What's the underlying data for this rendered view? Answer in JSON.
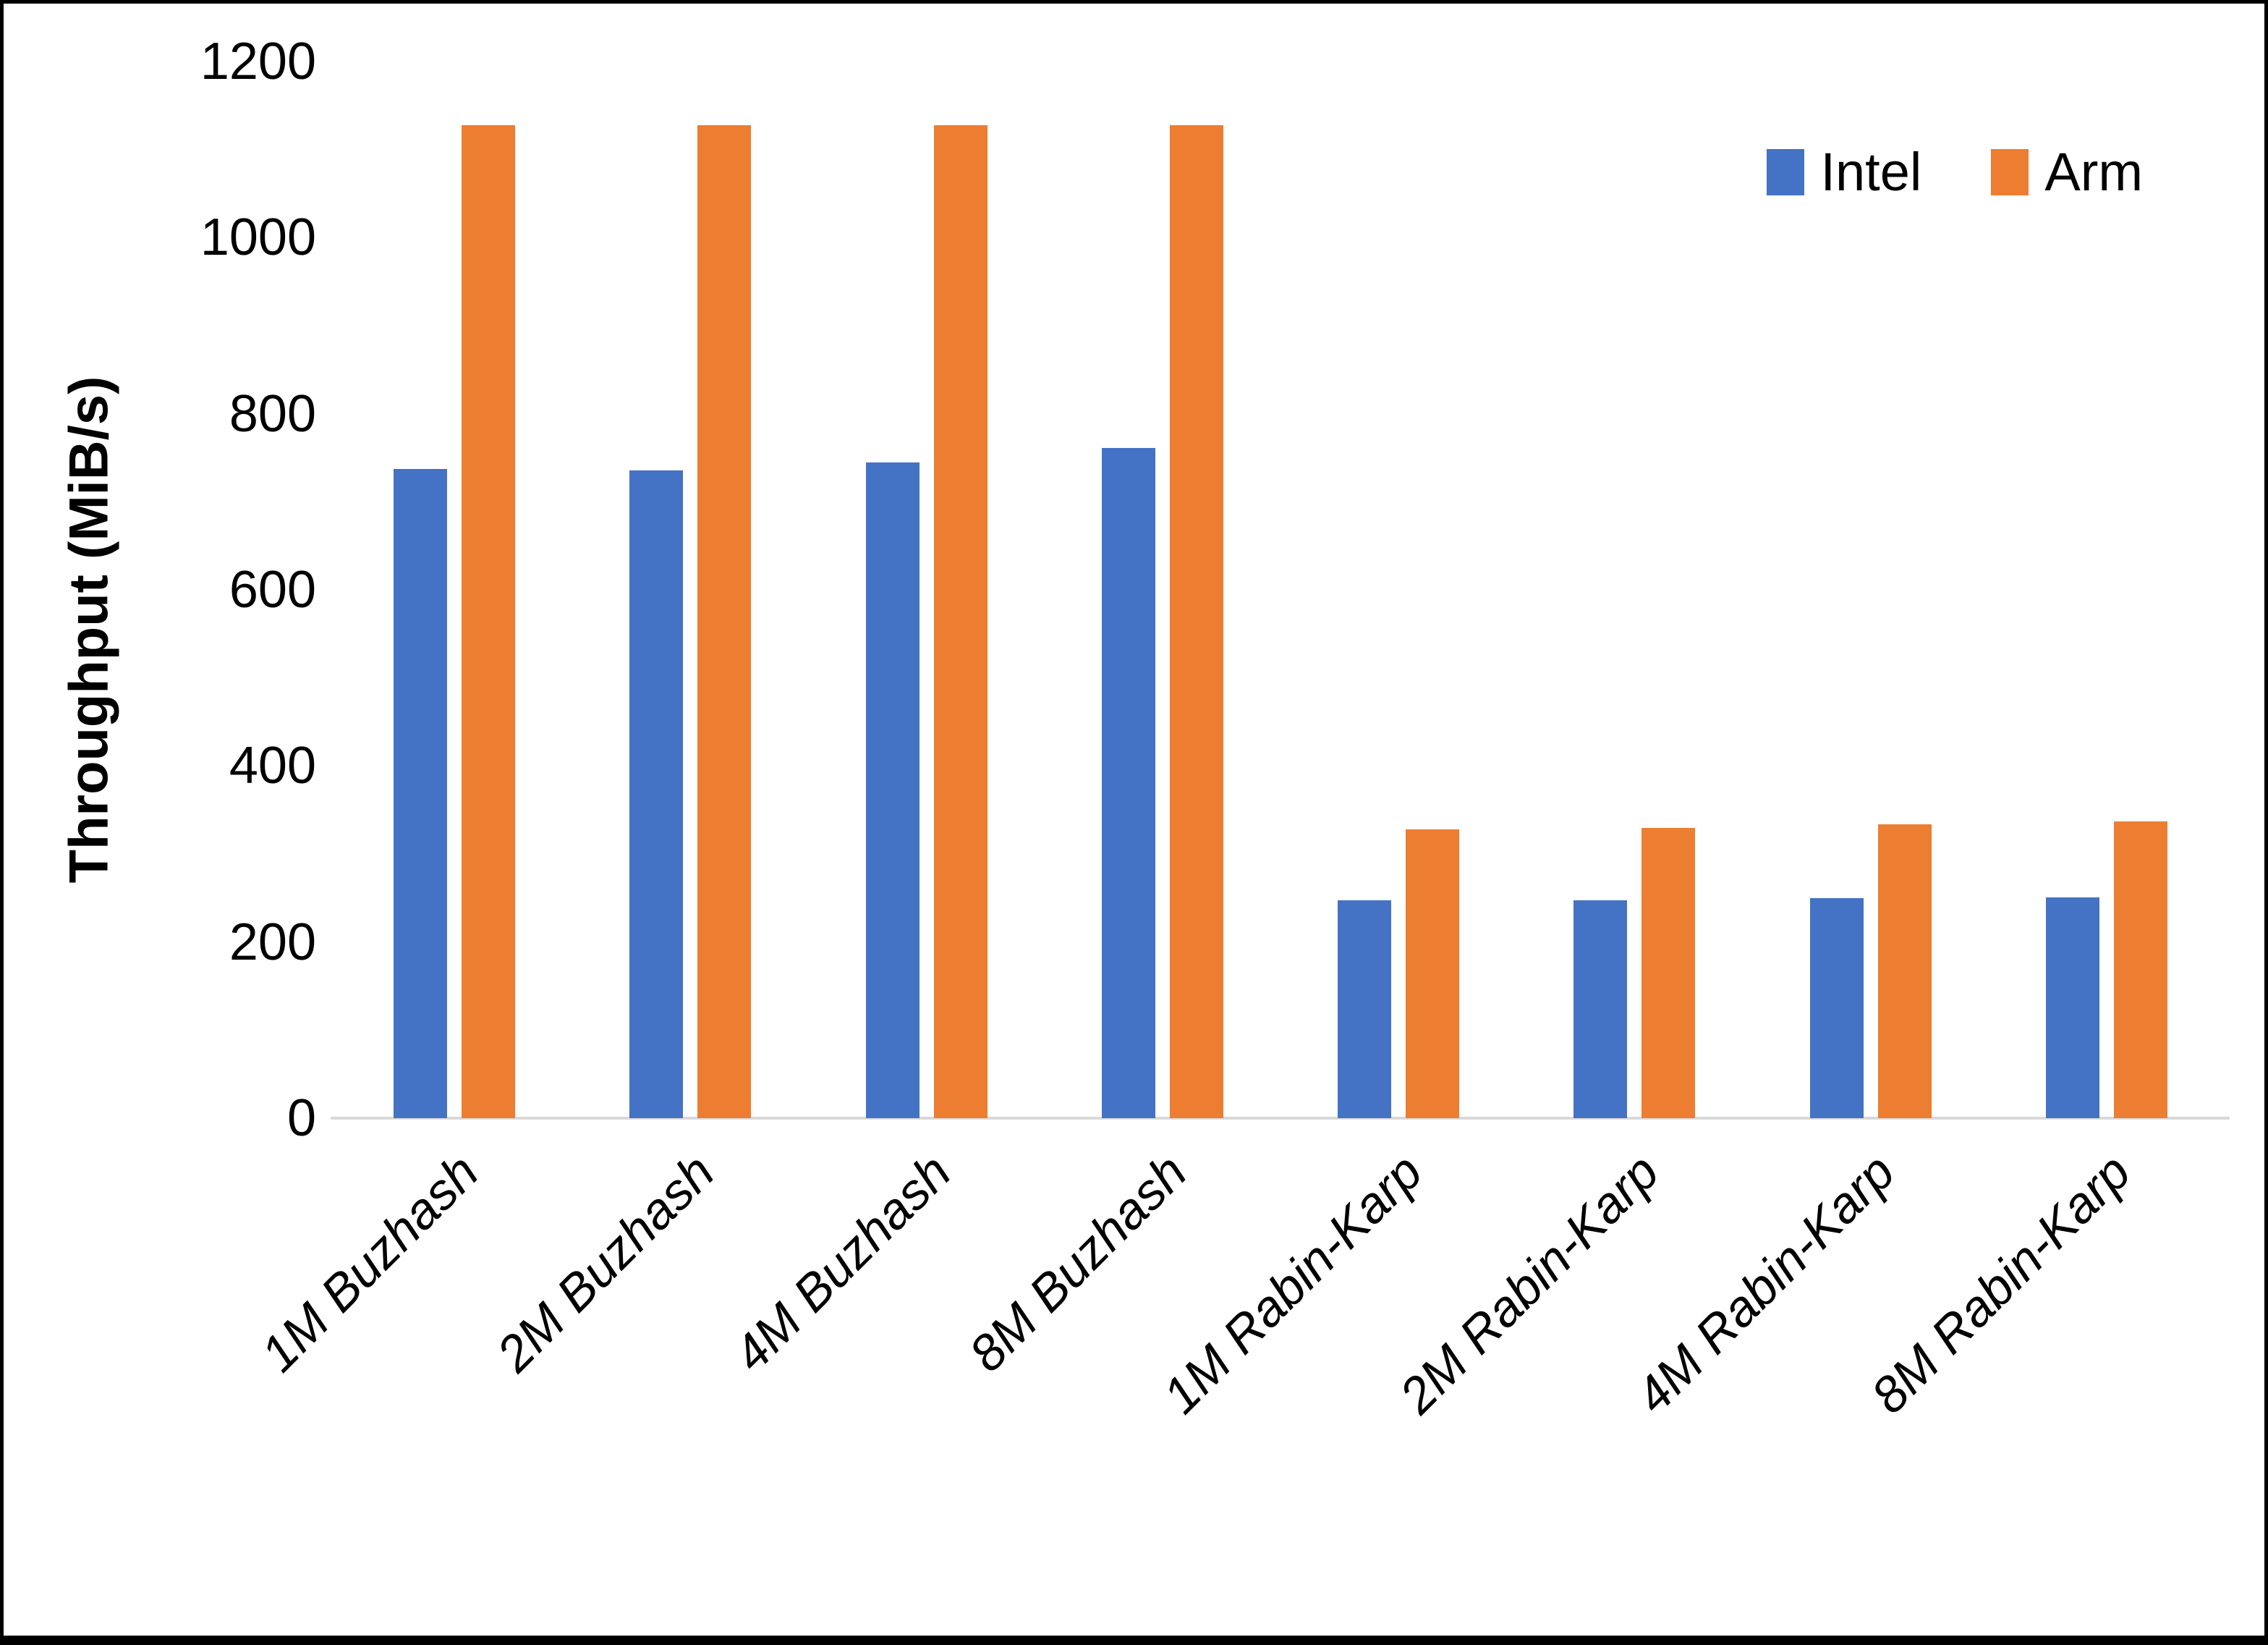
{
  "chart_data": {
    "type": "bar",
    "title": "",
    "ylabel": "Throughput (MiB/s)",
    "xlabel": "",
    "ylim": [
      0,
      1200
    ],
    "yticks": [
      0,
      200,
      400,
      600,
      800,
      1000,
      1200
    ],
    "grid": false,
    "legend_position": "top-right",
    "axis_line_color": "#d9d9d9",
    "categories": [
      "1M Buzhash",
      "2M Buzhash",
      "4M Buzhash",
      "8M Buzhash",
      "1M Rabin-Karp",
      "2M Rabin-Karp",
      "4M Rabin-Karp",
      "8M Rabin-Karp"
    ],
    "series": [
      {
        "name": "Intel",
        "color": "#4472C4",
        "values": [
          737,
          736,
          745,
          761,
          247,
          247,
          250,
          251
        ]
      },
      {
        "name": "Arm",
        "color": "#ED7D31",
        "values": [
          1128,
          1128,
          1128,
          1128,
          328,
          330,
          334,
          337
        ]
      }
    ]
  }
}
